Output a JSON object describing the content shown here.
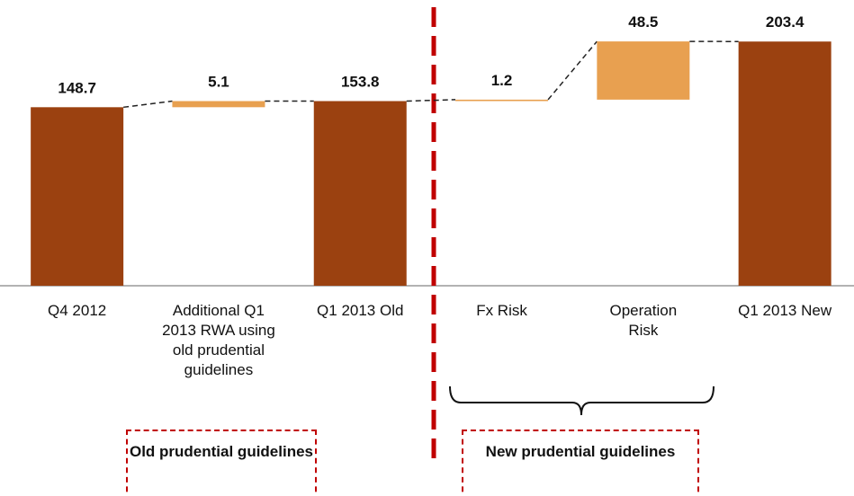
{
  "chart_data": {
    "type": "waterfall",
    "categories": [
      "Q4 2012",
      "Additional Q1 2013 RWA using old prudential guidelines",
      "Q1 2013 Old",
      "Fx Risk",
      "Operation Risk",
      "Q1 2013 New"
    ],
    "values": [
      148.7,
      5.1,
      153.8,
      1.2,
      48.5,
      203.4
    ],
    "is_total": [
      true,
      false,
      true,
      false,
      false,
      true
    ],
    "total_color": "#9b4110",
    "increment_color": "#e8a050",
    "ylim": [
      0,
      238
    ],
    "annotations": [
      "Old prudential guidelines",
      "New prudential guidelines"
    ]
  }
}
